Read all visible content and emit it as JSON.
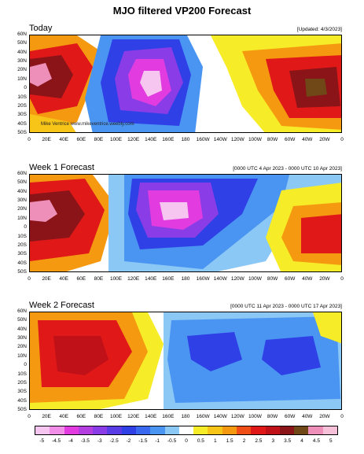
{
  "title": "MJO filtered VP200 Forecast",
  "panels": [
    {
      "label": "Today",
      "meta": "[Updated: 4/3/2023]",
      "credit": "Mike Ventrice www.mikeventrice.weebly.com"
    },
    {
      "label": "Week 1 Forecast",
      "meta": "[0000 UTC 4 Apr 2023 - 0000 UTC 10 Apr 2023]"
    },
    {
      "label": "Week 2 Forecast",
      "meta": "[0000 UTC 11 Apr 2023 - 0000 UTC 17 Apr 2023]"
    }
  ],
  "lat_labels": [
    "60N",
    "50N",
    "40N",
    "30N",
    "20N",
    "10N",
    "0",
    "10S",
    "20S",
    "30S",
    "40S",
    "50S"
  ],
  "lon_labels": [
    "0",
    "20E",
    "40E",
    "60E",
    "80E",
    "100E",
    "120E",
    "140E",
    "160E",
    "180",
    "160W",
    "140W",
    "120W",
    "100W",
    "80W",
    "60W",
    "40W",
    "20W",
    "0"
  ],
  "colorbar": {
    "labels": [
      "-5",
      "-4.5",
      "-4",
      "-3.5",
      "-3",
      "-2.5",
      "-2",
      "-1.5",
      "-1",
      "-0.5",
      "0",
      "0.5",
      "1",
      "1.5",
      "2",
      "2.5",
      "3",
      "3.5",
      "4",
      "4.5",
      "5"
    ],
    "colors": [
      "#f7c6f0",
      "#f08ee8",
      "#e23ce0",
      "#b43ee0",
      "#8a3ce6",
      "#5a3ce6",
      "#2f40e6",
      "#3a68ee",
      "#4a94f2",
      "#8cc8f6",
      "#ffffff",
      "#f6ec28",
      "#f7c418",
      "#f59a10",
      "#ef4e16",
      "#e01818",
      "#c01018",
      "#8a1418",
      "#704818",
      "#ed8fb8",
      "#f5c0d8"
    ]
  },
  "colors": {
    "strong_neg": "#b43ee0",
    "neg": "#3a68ee",
    "pos": "#ef4e16",
    "strong_pos": "#c01018"
  }
}
